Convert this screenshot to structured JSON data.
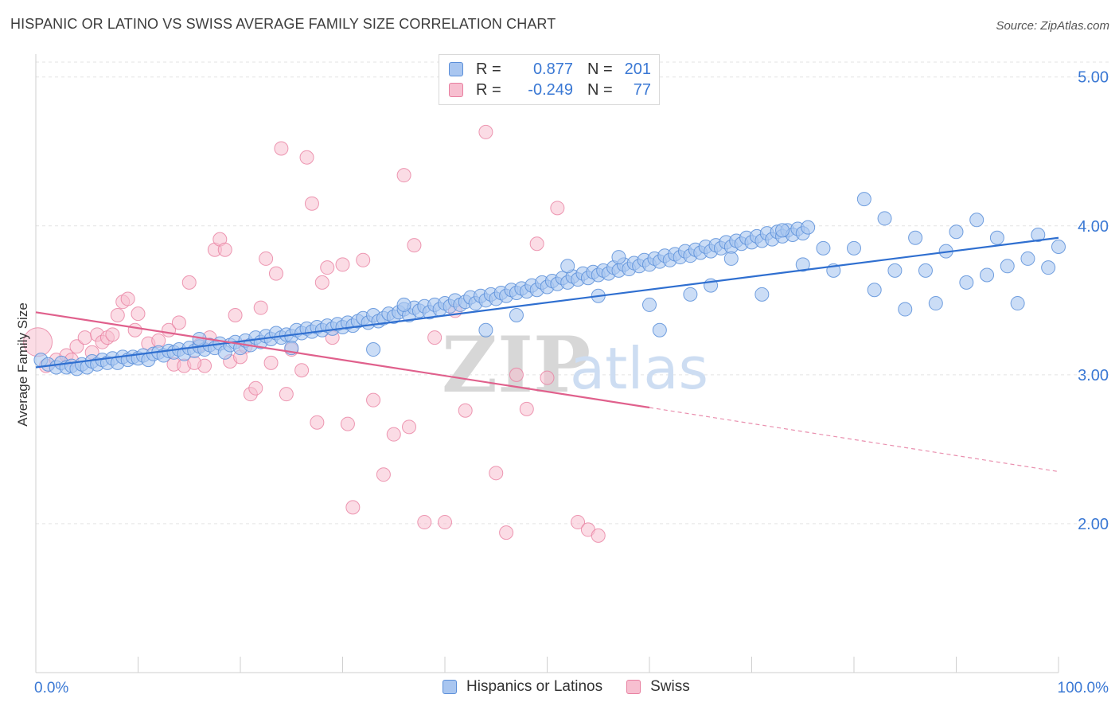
{
  "title": "HISPANIC OR LATINO VS SWISS AVERAGE FAMILY SIZE CORRELATION CHART",
  "source": "Source: ZipAtlas.com",
  "watermark": {
    "zip": "ZIP",
    "atlas": "atlas"
  },
  "legend": {
    "rows": [
      {
        "r_label": "R =",
        "r_value": "0.877",
        "n_label": "N =",
        "n_value": "201",
        "color": "#a9c6f0",
        "border": "#5b8fd9"
      },
      {
        "r_label": "R =",
        "r_value": "-0.249",
        "n_label": "N =",
        "n_value": "77",
        "color": "#f7bfd0",
        "border": "#e87fa0"
      }
    ]
  },
  "bottom_legend": [
    {
      "label": "Hispanics or Latinos",
      "color": "#a9c6f0",
      "border": "#5b8fd9"
    },
    {
      "label": "Swiss",
      "color": "#f7bfd0",
      "border": "#e87fa0"
    }
  ],
  "chart_data": {
    "type": "scatter",
    "title": "HISPANIC OR LATINO VS SWISS AVERAGE FAMILY SIZE CORRELATION CHART",
    "xlabel": "",
    "ylabel": "Average Family Size",
    "xlim": [
      0,
      100
    ],
    "ylim": [
      1.0,
      5.1
    ],
    "x_tick_labels": [
      "0.0%",
      "100.0%"
    ],
    "y_ticks": [
      2.0,
      3.0,
      4.0,
      5.0
    ],
    "y_tick_labels": [
      "2.00",
      "3.00",
      "4.00",
      "5.00"
    ],
    "grid": true,
    "legend_position": "top-center",
    "colors": {
      "blue_fill": "#a9c6f0",
      "blue_edge": "#5b8fd9",
      "blue_line": "#2f6fd0",
      "pink_fill": "#f7bfd0",
      "pink_edge": "#e87fa0",
      "pink_line": "#e0608c",
      "tick_label": "#3a78d4"
    },
    "series": [
      {
        "name": "Hispanics or Latinos",
        "trend": {
          "x": [
            0,
            100
          ],
          "y": [
            3.05,
            3.92
          ]
        },
        "points": [
          [
            0.5,
            3.1
          ],
          [
            1.2,
            3.07
          ],
          [
            2,
            3.05
          ],
          [
            2.5,
            3.08
          ],
          [
            3,
            3.05
          ],
          [
            3.5,
            3.06
          ],
          [
            4,
            3.04
          ],
          [
            4.5,
            3.07
          ],
          [
            5,
            3.05
          ],
          [
            5.5,
            3.09
          ],
          [
            6,
            3.07
          ],
          [
            6.5,
            3.1
          ],
          [
            7,
            3.08
          ],
          [
            7.5,
            3.11
          ],
          [
            8,
            3.08
          ],
          [
            8.5,
            3.12
          ],
          [
            9,
            3.1
          ],
          [
            9.5,
            3.12
          ],
          [
            10,
            3.11
          ],
          [
            10.5,
            3.13
          ],
          [
            11,
            3.1
          ],
          [
            11.5,
            3.14
          ],
          [
            12,
            3.15
          ],
          [
            12.5,
            3.13
          ],
          [
            13,
            3.16
          ],
          [
            13.5,
            3.15
          ],
          [
            14,
            3.17
          ],
          [
            14.5,
            3.14
          ],
          [
            15,
            3.18
          ],
          [
            15.5,
            3.16
          ],
          [
            16,
            3.19
          ],
          [
            16.5,
            3.17
          ],
          [
            17,
            3.2
          ],
          [
            17.5,
            3.18
          ],
          [
            18,
            3.21
          ],
          [
            18.5,
            3.15
          ],
          [
            19,
            3.2
          ],
          [
            19.5,
            3.22
          ],
          [
            20,
            3.18
          ],
          [
            20.5,
            3.23
          ],
          [
            21,
            3.2
          ],
          [
            21.5,
            3.25
          ],
          [
            22,
            3.22
          ],
          [
            22.5,
            3.26
          ],
          [
            23,
            3.24
          ],
          [
            23.5,
            3.28
          ],
          [
            24,
            3.25
          ],
          [
            24.5,
            3.27
          ],
          [
            25,
            3.26
          ],
          [
            25.5,
            3.3
          ],
          [
            26,
            3.28
          ],
          [
            26.5,
            3.31
          ],
          [
            27,
            3.29
          ],
          [
            27.5,
            3.32
          ],
          [
            28,
            3.3
          ],
          [
            28.5,
            3.33
          ],
          [
            29,
            3.31
          ],
          [
            29.5,
            3.34
          ],
          [
            30,
            3.32
          ],
          [
            30.5,
            3.35
          ],
          [
            31,
            3.33
          ],
          [
            31.5,
            3.36
          ],
          [
            32,
            3.38
          ],
          [
            32.5,
            3.35
          ],
          [
            33,
            3.4
          ],
          [
            33.5,
            3.36
          ],
          [
            34,
            3.38
          ],
          [
            34.5,
            3.41
          ],
          [
            35,
            3.39
          ],
          [
            35.5,
            3.42
          ],
          [
            36,
            3.44
          ],
          [
            36.5,
            3.4
          ],
          [
            37,
            3.45
          ],
          [
            37.5,
            3.43
          ],
          [
            38,
            3.46
          ],
          [
            38.5,
            3.42
          ],
          [
            39,
            3.47
          ],
          [
            39.5,
            3.44
          ],
          [
            40,
            3.48
          ],
          [
            40.5,
            3.46
          ],
          [
            41,
            3.5
          ],
          [
            41.5,
            3.47
          ],
          [
            42,
            3.49
          ],
          [
            42.5,
            3.52
          ],
          [
            43,
            3.48
          ],
          [
            43.5,
            3.53
          ],
          [
            44,
            3.5
          ],
          [
            44.5,
            3.54
          ],
          [
            45,
            3.51
          ],
          [
            45.5,
            3.55
          ],
          [
            46,
            3.53
          ],
          [
            46.5,
            3.57
          ],
          [
            47,
            3.55
          ],
          [
            47.5,
            3.58
          ],
          [
            48,
            3.56
          ],
          [
            48.5,
            3.6
          ],
          [
            49,
            3.57
          ],
          [
            49.5,
            3.62
          ],
          [
            50,
            3.59
          ],
          [
            50.5,
            3.63
          ],
          [
            51,
            3.61
          ],
          [
            51.5,
            3.65
          ],
          [
            52,
            3.62
          ],
          [
            52.5,
            3.66
          ],
          [
            53,
            3.64
          ],
          [
            53.5,
            3.68
          ],
          [
            54,
            3.65
          ],
          [
            54.5,
            3.69
          ],
          [
            55,
            3.67
          ],
          [
            55.5,
            3.7
          ],
          [
            56,
            3.68
          ],
          [
            56.5,
            3.72
          ],
          [
            57,
            3.7
          ],
          [
            57.5,
            3.74
          ],
          [
            58,
            3.71
          ],
          [
            58.5,
            3.75
          ],
          [
            59,
            3.73
          ],
          [
            59.5,
            3.77
          ],
          [
            60,
            3.74
          ],
          [
            60.5,
            3.78
          ],
          [
            61,
            3.76
          ],
          [
            61.5,
            3.8
          ],
          [
            62,
            3.77
          ],
          [
            62.5,
            3.81
          ],
          [
            63,
            3.79
          ],
          [
            63.5,
            3.83
          ],
          [
            64,
            3.8
          ],
          [
            64.5,
            3.84
          ],
          [
            65,
            3.82
          ],
          [
            65.5,
            3.86
          ],
          [
            66,
            3.83
          ],
          [
            66.5,
            3.87
          ],
          [
            67,
            3.85
          ],
          [
            67.5,
            3.89
          ],
          [
            68,
            3.86
          ],
          [
            68.5,
            3.9
          ],
          [
            69,
            3.88
          ],
          [
            69.5,
            3.92
          ],
          [
            70,
            3.89
          ],
          [
            70.5,
            3.93
          ],
          [
            71,
            3.9
          ],
          [
            71.5,
            3.95
          ],
          [
            72,
            3.91
          ],
          [
            72.5,
            3.96
          ],
          [
            73,
            3.93
          ],
          [
            73.5,
            3.97
          ],
          [
            74,
            3.94
          ],
          [
            74.5,
            3.98
          ],
          [
            75,
            3.95
          ],
          [
            75.5,
            3.99
          ],
          [
            16,
            3.24
          ],
          [
            25,
            3.18
          ],
          [
            33,
            3.17
          ],
          [
            36,
            3.47
          ],
          [
            44,
            3.3
          ],
          [
            47,
            3.4
          ],
          [
            52,
            3.73
          ],
          [
            55,
            3.53
          ],
          [
            57,
            3.79
          ],
          [
            60,
            3.47
          ],
          [
            61,
            3.3
          ],
          [
            64,
            3.54
          ],
          [
            66,
            3.6
          ],
          [
            68,
            3.78
          ],
          [
            71,
            3.54
          ],
          [
            73,
            3.97
          ],
          [
            75,
            3.74
          ],
          [
            77,
            3.85
          ],
          [
            78,
            3.7
          ],
          [
            80,
            3.85
          ],
          [
            81,
            4.18
          ],
          [
            82,
            3.57
          ],
          [
            83,
            4.05
          ],
          [
            84,
            3.7
          ],
          [
            85,
            3.44
          ],
          [
            86,
            3.92
          ],
          [
            87,
            3.7
          ],
          [
            88,
            3.48
          ],
          [
            89,
            3.83
          ],
          [
            90,
            3.96
          ],
          [
            91,
            3.62
          ],
          [
            92,
            4.04
          ],
          [
            93,
            3.67
          ],
          [
            94,
            3.92
          ],
          [
            95,
            3.73
          ],
          [
            96,
            3.48
          ],
          [
            97,
            3.78
          ],
          [
            98,
            3.94
          ],
          [
            99,
            3.72
          ],
          [
            100,
            3.86
          ]
        ]
      },
      {
        "name": "Swiss",
        "trend": {
          "x": [
            0,
            60
          ],
          "y": [
            3.42,
            2.78
          ]
        },
        "trend_extension": {
          "x": [
            60,
            100
          ],
          "y": [
            2.78,
            2.35
          ]
        },
        "points": [
          [
            0.2,
            3.22
          ],
          [
            1,
            3.06
          ],
          [
            2,
            3.1
          ],
          [
            3,
            3.13
          ],
          [
            3.5,
            3.1
          ],
          [
            4,
            3.19
          ],
          [
            4.8,
            3.25
          ],
          [
            5.5,
            3.15
          ],
          [
            6,
            3.27
          ],
          [
            6.5,
            3.22
          ],
          [
            7,
            3.25
          ],
          [
            7.5,
            3.27
          ],
          [
            8,
            3.4
          ],
          [
            8.5,
            3.49
          ],
          [
            9,
            3.51
          ],
          [
            9.7,
            3.3
          ],
          [
            10,
            3.41
          ],
          [
            11,
            3.21
          ],
          [
            12,
            3.23
          ],
          [
            13,
            3.3
          ],
          [
            13.5,
            3.07
          ],
          [
            14,
            3.35
          ],
          [
            14.5,
            3.06
          ],
          [
            15,
            3.62
          ],
          [
            16,
            3.2
          ],
          [
            16.5,
            3.06
          ],
          [
            17,
            3.25
          ],
          [
            17.5,
            3.84
          ],
          [
            18,
            3.91
          ],
          [
            18.5,
            3.84
          ],
          [
            19,
            3.09
          ],
          [
            19.5,
            3.4
          ],
          [
            20,
            3.12
          ],
          [
            20.5,
            3.19
          ],
          [
            21,
            2.87
          ],
          [
            21.5,
            2.91
          ],
          [
            22,
            3.45
          ],
          [
            22.5,
            3.78
          ],
          [
            23,
            3.08
          ],
          [
            23.5,
            3.68
          ],
          [
            24,
            4.52
          ],
          [
            24.5,
            2.87
          ],
          [
            25,
            3.17
          ],
          [
            26,
            3.03
          ],
          [
            26.5,
            4.46
          ],
          [
            27,
            4.15
          ],
          [
            27.5,
            2.68
          ],
          [
            28,
            3.62
          ],
          [
            28.5,
            3.72
          ],
          [
            29,
            3.25
          ],
          [
            30,
            3.74
          ],
          [
            30.5,
            2.67
          ],
          [
            31,
            2.11
          ],
          [
            32,
            3.77
          ],
          [
            33,
            2.83
          ],
          [
            34,
            2.33
          ],
          [
            35,
            2.6
          ],
          [
            36,
            4.34
          ],
          [
            36.5,
            2.65
          ],
          [
            37,
            3.87
          ],
          [
            38,
            2.01
          ],
          [
            39,
            3.25
          ],
          [
            40,
            2.01
          ],
          [
            41,
            3.43
          ],
          [
            42,
            2.76
          ],
          [
            44,
            4.63
          ],
          [
            45,
            2.34
          ],
          [
            46,
            1.94
          ],
          [
            47,
            3.0
          ],
          [
            48,
            2.77
          ],
          [
            49,
            3.88
          ],
          [
            50,
            2.98
          ],
          [
            51,
            4.12
          ],
          [
            53,
            2.01
          ],
          [
            54,
            1.96
          ],
          [
            55,
            1.92
          ],
          [
            15.5,
            3.08
          ]
        ]
      }
    ]
  }
}
